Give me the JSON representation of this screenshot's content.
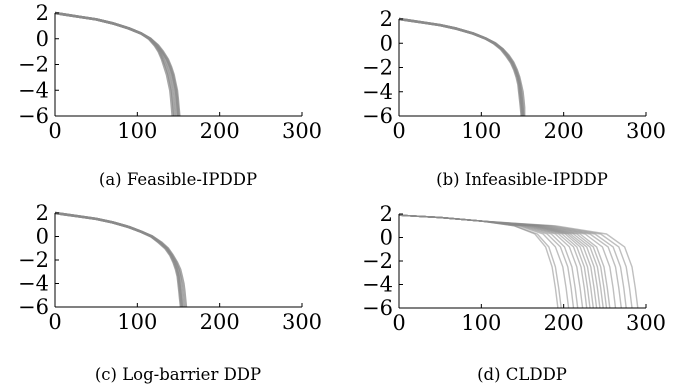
{
  "chart_data": [
    {
      "type": "line",
      "caption": "(a) Feasible-IPDDP",
      "xlim": [
        0,
        300
      ],
      "ylim": [
        -6,
        2
      ],
      "xticks": [
        "0",
        "100",
        "200",
        "300"
      ],
      "yticks": [
        "2",
        "0",
        "−2",
        "−4",
        "−6"
      ],
      "grid": false,
      "series": [
        {
          "x": [
            0,
            10,
            30,
            50,
            70,
            90,
            105,
            115,
            122,
            127,
            131,
            135,
            138,
            140,
            142,
            143,
            144,
            145
          ],
          "y": [
            2,
            1.9,
            1.7,
            1.5,
            1.2,
            0.8,
            0.4,
            0,
            -0.5,
            -1,
            -1.6,
            -2.2,
            -2.8,
            -3.4,
            -4,
            -4.6,
            -5.3,
            -6
          ]
        },
        {
          "x": [
            0,
            10,
            30,
            50,
            70,
            90,
            105,
            115,
            123,
            129,
            134,
            138,
            141,
            143,
            145,
            146,
            147,
            148
          ],
          "y": [
            2,
            1.9,
            1.7,
            1.5,
            1.2,
            0.8,
            0.4,
            0,
            -0.5,
            -1,
            -1.6,
            -2.2,
            -2.8,
            -3.4,
            -4,
            -4.6,
            -5.3,
            -6
          ]
        },
        {
          "x": [
            0,
            10,
            30,
            50,
            70,
            90,
            105,
            116,
            124,
            130,
            136,
            140,
            143,
            145,
            147,
            148,
            149,
            150
          ],
          "y": [
            2,
            1.9,
            1.7,
            1.5,
            1.2,
            0.8,
            0.4,
            0,
            -0.5,
            -1,
            -1.6,
            -2.2,
            -2.8,
            -3.4,
            -4,
            -4.6,
            -5.3,
            -6
          ]
        },
        {
          "x": [
            0,
            10,
            30,
            50,
            70,
            90,
            105,
            116,
            125,
            131,
            137,
            141,
            144,
            146,
            148,
            149,
            150,
            151
          ],
          "y": [
            2,
            1.9,
            1.7,
            1.5,
            1.2,
            0.8,
            0.4,
            0,
            -0.5,
            -1,
            -1.6,
            -2.2,
            -2.8,
            -3.4,
            -4,
            -4.6,
            -5.3,
            -6
          ]
        },
        {
          "x": [
            0,
            10,
            30,
            50,
            70,
            90,
            105,
            114,
            121,
            126,
            130,
            133,
            136,
            138,
            140,
            141,
            142,
            143
          ],
          "y": [
            2,
            1.9,
            1.7,
            1.5,
            1.2,
            0.8,
            0.4,
            0,
            -0.5,
            -1,
            -1.6,
            -2.2,
            -2.8,
            -3.4,
            -4,
            -4.6,
            -5.3,
            -6
          ]
        }
      ]
    },
    {
      "type": "line",
      "caption": "(b) Infeasible-IPDDP",
      "xlim": [
        0,
        300
      ],
      "ylim": [
        -6,
        2
      ],
      "xticks": [
        "0",
        "100",
        "200",
        "300"
      ],
      "yticks": [
        "2",
        "0",
        "−2",
        "−4",
        "−6"
      ],
      "grid": false,
      "series": [
        {
          "x": [
            0,
            10,
            30,
            50,
            70,
            90,
            105,
            116,
            125,
            131,
            137,
            141,
            144,
            146,
            147,
            148,
            149,
            150
          ],
          "y": [
            2,
            1.9,
            1.7,
            1.5,
            1.2,
            0.8,
            0.4,
            0,
            -0.5,
            -1,
            -1.6,
            -2.2,
            -2.8,
            -3.4,
            -4,
            -4.6,
            -5.3,
            -6
          ]
        },
        {
          "x": [
            0,
            10,
            30,
            50,
            70,
            90,
            105,
            116,
            126,
            132,
            138,
            142,
            145,
            147,
            148,
            149,
            150,
            151
          ],
          "y": [
            2,
            1.9,
            1.7,
            1.5,
            1.2,
            0.8,
            0.4,
            0,
            -0.5,
            -1,
            -1.6,
            -2.2,
            -2.8,
            -3.4,
            -4,
            -4.6,
            -5.3,
            -6
          ]
        },
        {
          "x": [
            0,
            10,
            30,
            50,
            70,
            90,
            105,
            117,
            126,
            133,
            139,
            143,
            146,
            148,
            150,
            151,
            152,
            152
          ],
          "y": [
            2,
            1.9,
            1.7,
            1.5,
            1.2,
            0.8,
            0.4,
            0,
            -0.5,
            -1,
            -1.6,
            -2.2,
            -2.8,
            -3.4,
            -4,
            -4.6,
            -5.3,
            -6
          ]
        },
        {
          "x": [
            0,
            10,
            30,
            50,
            70,
            90,
            105,
            115,
            124,
            130,
            136,
            140,
            143,
            145,
            146,
            147,
            148,
            149
          ],
          "y": [
            2,
            1.9,
            1.7,
            1.5,
            1.2,
            0.8,
            0.4,
            0,
            -0.5,
            -1,
            -1.6,
            -2.2,
            -2.8,
            -3.4,
            -4,
            -4.6,
            -5.3,
            -6
          ]
        }
      ]
    },
    {
      "type": "line",
      "caption": "(c) Log-barrier DDP",
      "xlim": [
        0,
        300
      ],
      "ylim": [
        -6,
        2
      ],
      "xticks": [
        "0",
        "100",
        "200",
        "300"
      ],
      "yticks": [
        "2",
        "0",
        "−2",
        "−4",
        "−6"
      ],
      "grid": false,
      "series": [
        {
          "x": [
            0,
            10,
            30,
            50,
            70,
            90,
            105,
            117,
            127,
            135,
            141,
            145,
            148,
            150,
            151,
            152,
            153,
            154
          ],
          "y": [
            2,
            1.9,
            1.7,
            1.5,
            1.2,
            0.8,
            0.4,
            0,
            -0.5,
            -1,
            -1.6,
            -2.2,
            -2.8,
            -3.4,
            -4,
            -4.6,
            -5.3,
            -6
          ]
        },
        {
          "x": [
            0,
            10,
            30,
            50,
            70,
            90,
            105,
            118,
            128,
            136,
            142,
            147,
            150,
            152,
            153,
            154,
            155,
            156
          ],
          "y": [
            2,
            1.9,
            1.7,
            1.5,
            1.2,
            0.8,
            0.4,
            0,
            -0.5,
            -1,
            -1.6,
            -2.2,
            -2.8,
            -3.4,
            -4,
            -4.6,
            -5.3,
            -6
          ]
        },
        {
          "x": [
            0,
            10,
            30,
            50,
            70,
            90,
            105,
            118,
            129,
            137,
            143,
            148,
            152,
            154,
            156,
            157,
            158,
            159
          ],
          "y": [
            2,
            1.9,
            1.7,
            1.5,
            1.2,
            0.8,
            0.4,
            0,
            -0.5,
            -1,
            -1.6,
            -2.2,
            -2.8,
            -3.4,
            -4,
            -4.6,
            -5.3,
            -6
          ]
        },
        {
          "x": [
            0,
            10,
            30,
            50,
            70,
            90,
            105,
            117,
            126,
            134,
            140,
            144,
            147,
            149,
            150,
            151,
            152,
            153
          ],
          "y": [
            2,
            1.9,
            1.7,
            1.5,
            1.2,
            0.8,
            0.4,
            0,
            -0.5,
            -1,
            -1.6,
            -2.2,
            -2.8,
            -3.4,
            -4,
            -4.6,
            -5.3,
            -6
          ]
        }
      ]
    },
    {
      "type": "line",
      "caption": "(d) CLDDP",
      "xlim": [
        0,
        300
      ],
      "ylim": [
        -6,
        2
      ],
      "xticks": [
        "0",
        "100",
        "200",
        "300"
      ],
      "yticks": [
        "2",
        "0",
        "−2",
        "−4",
        "−6"
      ],
      "grid": false,
      "series": [
        {
          "x": [
            0,
            50,
            100,
            140,
            165,
            178,
            186,
            190,
            193
          ],
          "y": [
            1.9,
            1.7,
            1.4,
            1,
            0.3,
            -0.8,
            -2.5,
            -4.3,
            -6
          ]
        },
        {
          "x": [
            0,
            50,
            100,
            140,
            168,
            182,
            190,
            194,
            197
          ],
          "y": [
            1.9,
            1.7,
            1.4,
            1,
            0.3,
            -0.8,
            -2.5,
            -4.3,
            -6
          ]
        },
        {
          "x": [
            0,
            50,
            100,
            145,
            175,
            190,
            199,
            203,
            206
          ],
          "y": [
            1.9,
            1.7,
            1.4,
            1,
            0.3,
            -0.8,
            -2.5,
            -4.3,
            -6
          ]
        },
        {
          "x": [
            0,
            50,
            100,
            148,
            180,
            196,
            205,
            209,
            212
          ],
          "y": [
            1.9,
            1.7,
            1.4,
            1,
            0.3,
            -0.8,
            -2.5,
            -4.3,
            -6
          ]
        },
        {
          "x": [
            0,
            50,
            100,
            150,
            185,
            201,
            210,
            214,
            217
          ],
          "y": [
            1.9,
            1.7,
            1.4,
            1,
            0.3,
            -0.8,
            -2.5,
            -4.3,
            -6
          ]
        },
        {
          "x": [
            0,
            50,
            100,
            153,
            190,
            207,
            216,
            220,
            223
          ],
          "y": [
            1.9,
            1.7,
            1.4,
            1,
            0.3,
            -0.8,
            -2.5,
            -4.3,
            -6
          ]
        },
        {
          "x": [
            0,
            50,
            100,
            155,
            194,
            212,
            221,
            225,
            228
          ],
          "y": [
            1.9,
            1.7,
            1.4,
            1,
            0.3,
            -0.8,
            -2.5,
            -4.3,
            -6
          ]
        },
        {
          "x": [
            0,
            50,
            100,
            158,
            198,
            216,
            225,
            229,
            232
          ],
          "y": [
            1.9,
            1.7,
            1.4,
            1,
            0.3,
            -0.8,
            -2.5,
            -4.3,
            -6
          ]
        },
        {
          "x": [
            0,
            50,
            100,
            160,
            202,
            220,
            229,
            233,
            236
          ],
          "y": [
            1.9,
            1.7,
            1.4,
            1,
            0.3,
            -0.8,
            -2.5,
            -4.3,
            -6
          ]
        },
        {
          "x": [
            0,
            50,
            100,
            162,
            205,
            224,
            233,
            237,
            240
          ],
          "y": [
            1.9,
            1.7,
            1.4,
            1,
            0.3,
            -0.8,
            -2.5,
            -4.3,
            -6
          ]
        },
        {
          "x": [
            0,
            50,
            100,
            164,
            208,
            228,
            237,
            241,
            244
          ],
          "y": [
            1.9,
            1.7,
            1.4,
            1,
            0.3,
            -0.8,
            -2.5,
            -4.3,
            -6
          ]
        },
        {
          "x": [
            0,
            50,
            100,
            166,
            212,
            232,
            241,
            245,
            248
          ],
          "y": [
            1.9,
            1.7,
            1.4,
            1,
            0.3,
            -0.8,
            -2.5,
            -4.3,
            -6
          ]
        },
        {
          "x": [
            0,
            50,
            100,
            168,
            216,
            236,
            245,
            249,
            252
          ],
          "y": [
            1.9,
            1.7,
            1.4,
            1,
            0.3,
            -0.8,
            -2.5,
            -4.3,
            -6
          ]
        },
        {
          "x": [
            0,
            50,
            100,
            170,
            220,
            240,
            249,
            253,
            256
          ],
          "y": [
            1.9,
            1.7,
            1.4,
            1,
            0.3,
            -0.8,
            -2.5,
            -4.3,
            -6
          ]
        },
        {
          "x": [
            0,
            50,
            100,
            173,
            226,
            247,
            256,
            260,
            263
          ],
          "y": [
            1.9,
            1.7,
            1.4,
            1,
            0.3,
            -0.8,
            -2.5,
            -4.3,
            -6
          ]
        },
        {
          "x": [
            0,
            50,
            100,
            176,
            232,
            254,
            263,
            267,
            270
          ],
          "y": [
            1.9,
            1.7,
            1.4,
            1,
            0.3,
            -0.8,
            -2.5,
            -4.3,
            -6
          ]
        },
        {
          "x": [
            0,
            50,
            100,
            180,
            238,
            260,
            269,
            273,
            276
          ],
          "y": [
            1.9,
            1.7,
            1.4,
            1,
            0.3,
            -0.8,
            -2.5,
            -4.3,
            -6
          ]
        },
        {
          "x": [
            0,
            50,
            100,
            185,
            245,
            267,
            276,
            280,
            283
          ],
          "y": [
            1.9,
            1.7,
            1.4,
            1,
            0.3,
            -0.8,
            -2.5,
            -4.3,
            -6
          ]
        },
        {
          "x": [
            0,
            50,
            100,
            190,
            252,
            274,
            283,
            287,
            290
          ],
          "y": [
            1.9,
            1.7,
            1.4,
            1,
            0.3,
            -0.8,
            -2.5,
            -4.3,
            -6
          ]
        }
      ]
    }
  ]
}
